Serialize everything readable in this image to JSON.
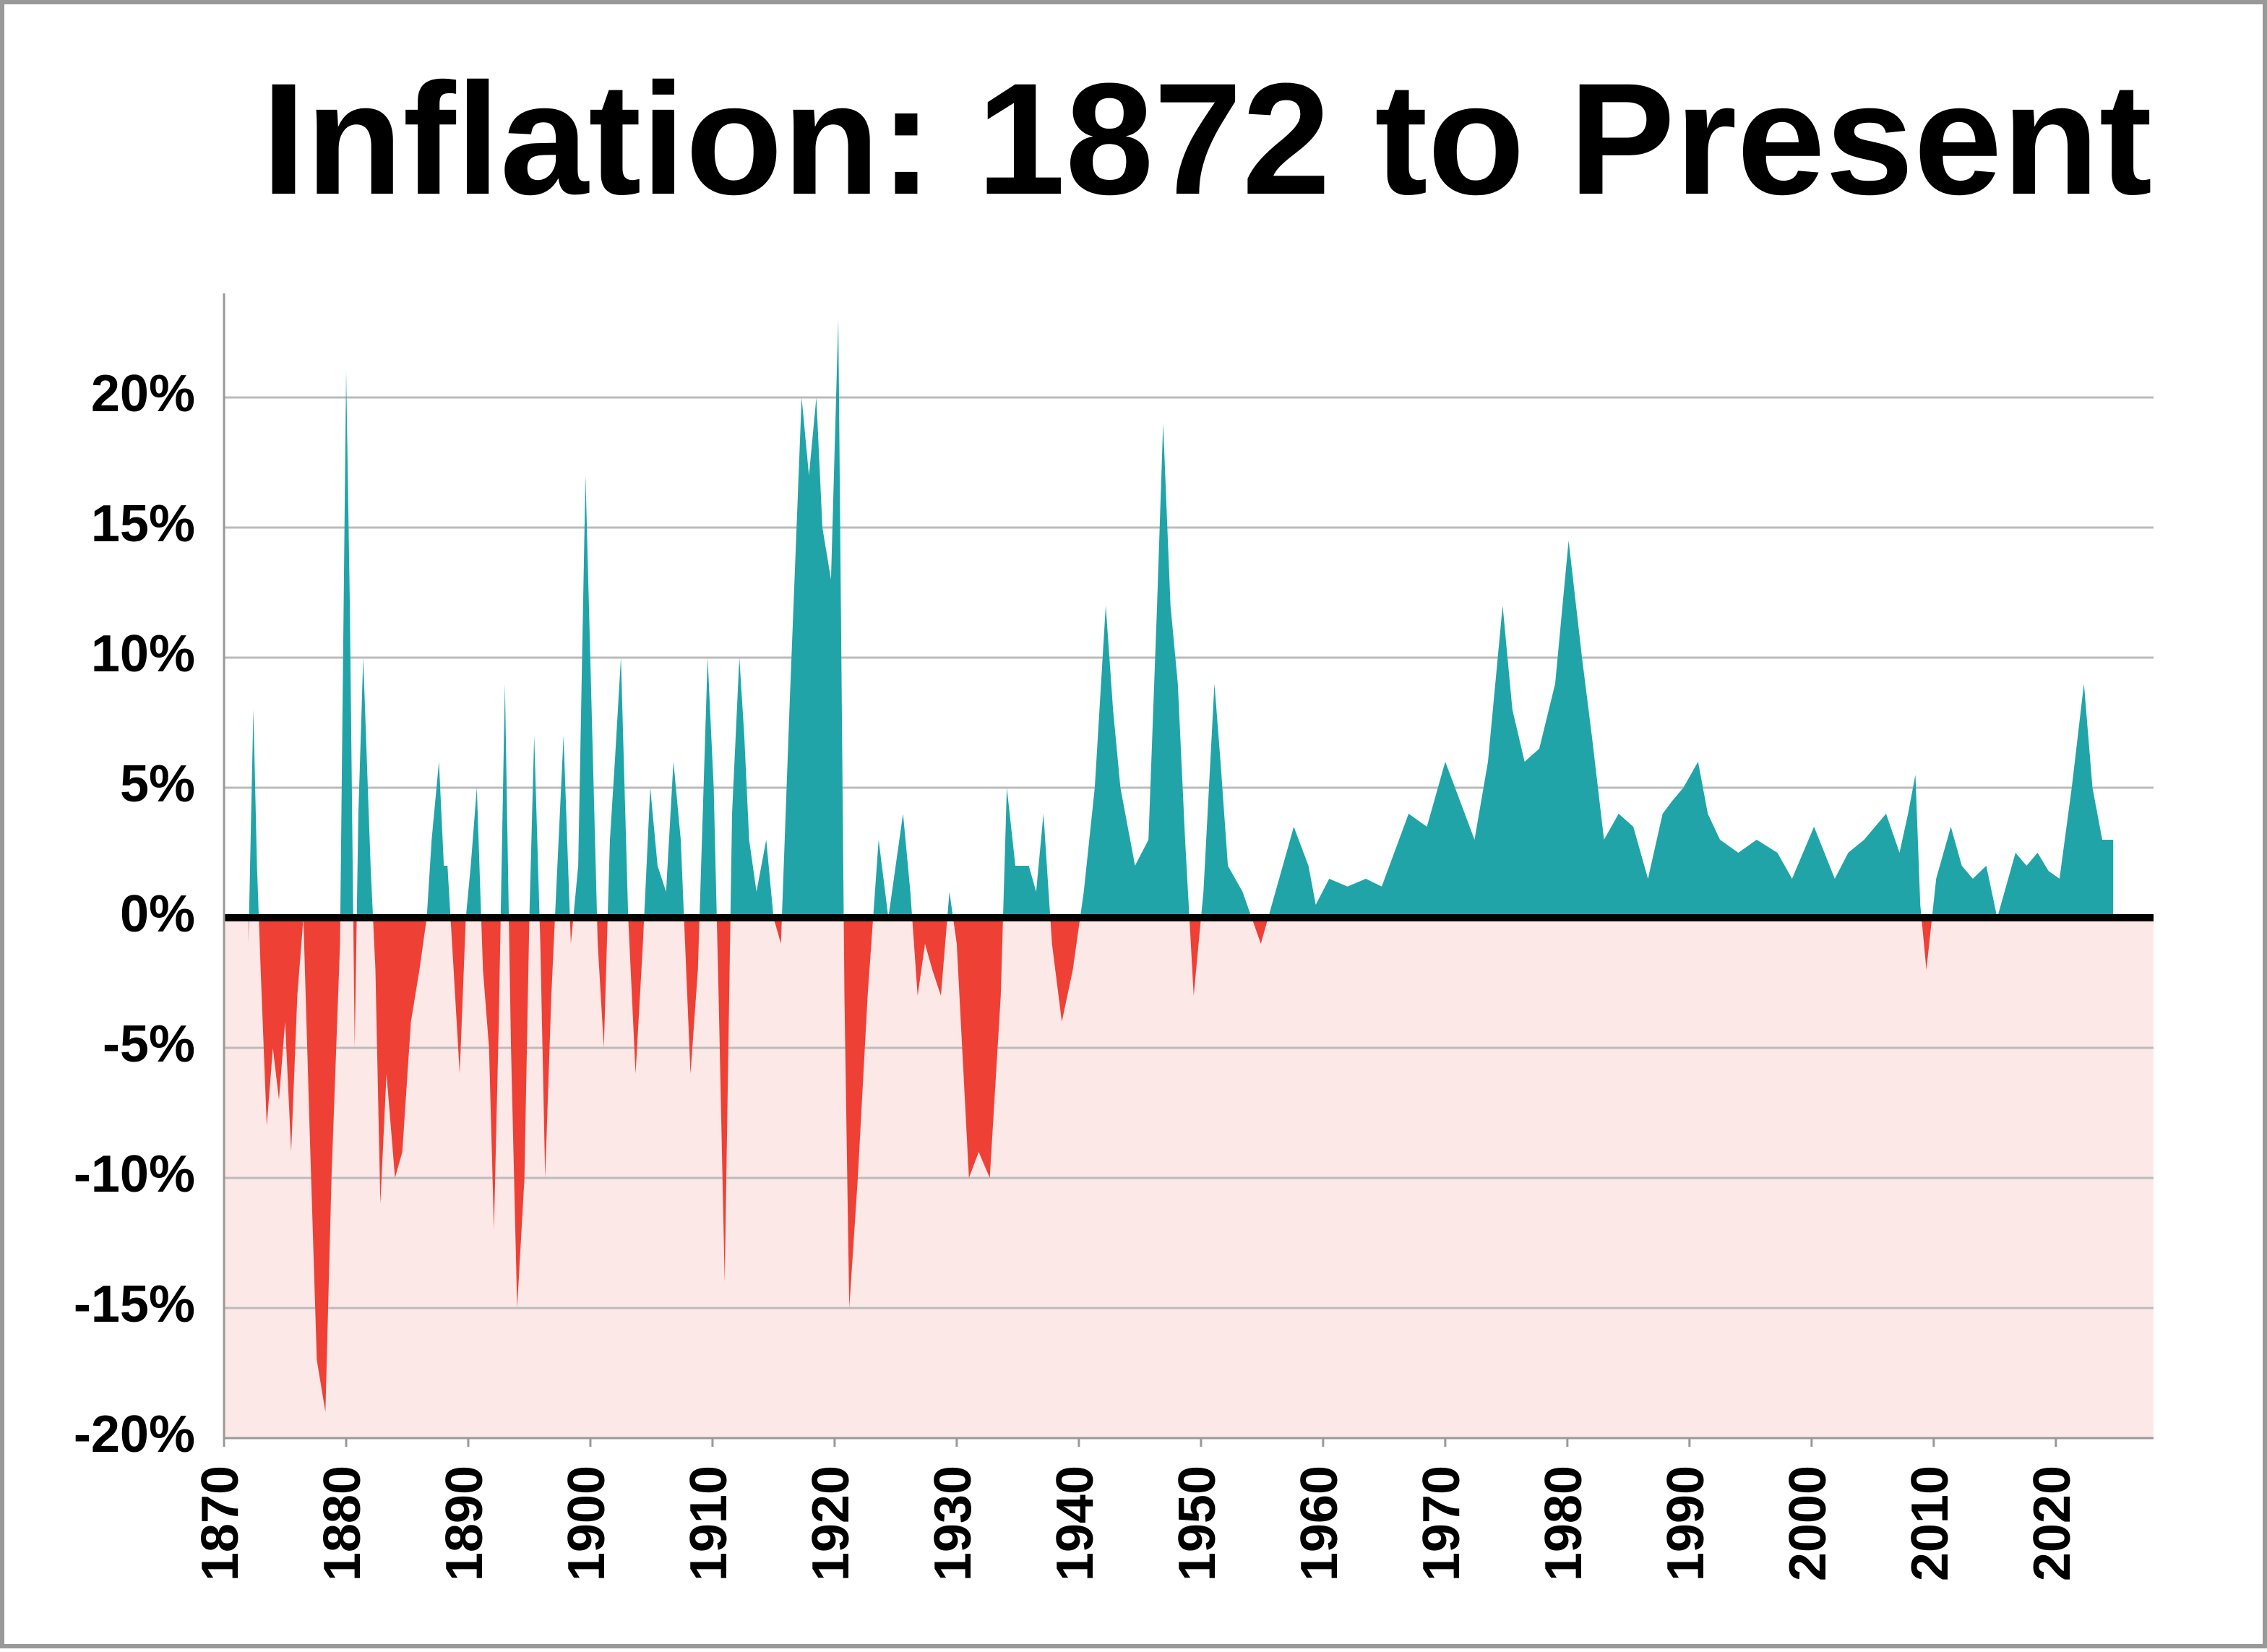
{
  "chart_data": {
    "type": "area",
    "title": "Inflation: 1872 to Present",
    "x": [
      1872.0,
      1872.4,
      1872.7,
      1873.0,
      1873.5,
      1874.0,
      1874.5,
      1875.0,
      1875.5,
      1876.0,
      1876.5,
      1877.0,
      1877.6,
      1878.3,
      1878.8,
      1879.5,
      1880.0,
      1880.3,
      1880.7,
      1881.0,
      1881.4,
      1882.0,
      1882.4,
      1882.8,
      1883.3,
      1884.0,
      1884.6,
      1885.3,
      1886.0,
      1886.6,
      1887.0,
      1887.6,
      1888.0,
      1888.3,
      1888.8,
      1889.3,
      1889.8,
      1890.2,
      1890.7,
      1891.2,
      1891.7,
      1892.1,
      1892.5,
      1893.0,
      1893.5,
      1894.0,
      1894.6,
      1895.0,
      1895.4,
      1895.9,
      1896.3,
      1896.8,
      1897.2,
      1897.8,
      1898.4,
      1899.0,
      1899.6,
      1900.1,
      1900.6,
      1901.1,
      1901.6,
      1902.0,
      1902.5,
      1903.1,
      1903.7,
      1904.3,
      1904.9,
      1905.5,
      1906.2,
      1906.8,
      1907.4,
      1908.2,
      1908.8,
      1909.6,
      1910.1,
      1910.5,
      1911.0,
      1911.6,
      1912.2,
      1912.6,
      1913.0,
      1913.6,
      1914.4,
      1915.0,
      1915.6,
      1916.3,
      1917.3,
      1917.9,
      1918.5,
      1919.0,
      1919.7,
      1920.3,
      1920.8,
      1921.2,
      1921.9,
      1922.7,
      1923.6,
      1924.4,
      1925.0,
      1925.6,
      1926.2,
      1926.8,
      1927.4,
      1928.0,
      1928.7,
      1929.4,
      1930.0,
      1931.0,
      1931.8,
      1932.7,
      1933.6,
      1934.1,
      1934.8,
      1935.9,
      1936.5,
      1937.1,
      1937.8,
      1938.6,
      1939.5,
      1940.4,
      1941.3,
      1942.2,
      1942.8,
      1943.4,
      1944.6,
      1945.7,
      1946.4,
      1946.9,
      1947.5,
      1948.1,
      1948.7,
      1949.4,
      1950.2,
      1951.1,
      1951.6,
      1952.2,
      1953.4,
      1954.9,
      1955.8,
      1957.6,
      1958.8,
      1959.4,
      1960.5,
      1962.0,
      1963.5,
      1964.8,
      1967.0,
      1968.5,
      1970.0,
      1971.2,
      1972.4,
      1973.5,
      1974.7,
      1975.5,
      1976.5,
      1977.7,
      1979.0,
      1980.1,
      1981.2,
      1982.0,
      1983.0,
      1984.2,
      1985.4,
      1986.6,
      1987.8,
      1988.6,
      1989.5,
      1990.7,
      1991.5,
      1992.5,
      1994.0,
      1995.5,
      1997.2,
      1998.4,
      2000.2,
      2001.9,
      2003.0,
      2004.3,
      2005.2,
      2006.1,
      2007.2,
      2007.9,
      2008.5,
      2008.9,
      2009.4,
      2010.2,
      2011.4,
      2012.3,
      2013.2,
      2014.3,
      2015.2,
      2016.7,
      2017.6,
      2018.5,
      2019.4,
      2020.3,
      2021.3,
      2022.3,
      2023.0,
      2023.8,
      2024.7
    ],
    "values": [
      -1,
      8,
      2,
      -2,
      -8,
      -5,
      -7,
      -4,
      -9,
      -3,
      0,
      -8,
      -17,
      -19,
      -10,
      -1,
      21,
      12,
      -5,
      4,
      10,
      2,
      -2,
      -11,
      -6,
      -10,
      -9,
      -4,
      -2,
      0,
      3,
      6,
      2,
      2,
      -2,
      -6,
      0,
      2,
      5,
      -2,
      -5,
      -12,
      -4,
      9,
      -5,
      -15,
      -10,
      0,
      7,
      -1,
      -10,
      -3,
      1,
      7,
      -1,
      2,
      17,
      8,
      -1,
      -5,
      3,
      6,
      10,
      0,
      -6,
      -1,
      5,
      2,
      1,
      6,
      3,
      -6,
      -2,
      10,
      5,
      -3,
      -14,
      4,
      10,
      7,
      3,
      1,
      3,
      0,
      -1,
      8,
      20,
      17,
      20,
      15,
      13,
      23,
      -3,
      -15,
      -10,
      -3,
      3,
      0,
      2,
      4,
      1,
      -3,
      -1,
      -2,
      -3,
      1,
      -1,
      -10,
      -9,
      -10,
      -3,
      5,
      2,
      2,
      1,
      4,
      -1,
      -4,
      -2,
      1,
      5,
      12,
      8,
      5,
      2,
      3,
      12,
      19,
      12,
      9,
      3,
      -3,
      1,
      9,
      6,
      2,
      1,
      -1,
      0.5,
      3.5,
      2,
      0.5,
      1.5,
      1.2,
      1.5,
      1.2,
      4,
      3.5,
      6,
      4.5,
      3,
      6,
      12,
      8,
      6,
      6.5,
      9,
      14.5,
      10,
      7,
      3,
      4,
      3.5,
      1.5,
      4,
      4.5,
      5,
      6,
      4,
      3,
      2.5,
      3,
      2.5,
      1.5,
      3.5,
      1.5,
      2.5,
      3,
      3.5,
      4,
      2.5,
      4,
      5.5,
      0.5,
      -2,
      1.5,
      3.5,
      2,
      1.5,
      2,
      0,
      2.5,
      2,
      2.5,
      1.8,
      1.5,
      5,
      9,
      5,
      3,
      3
    ],
    "positive_color": "#20a4a8",
    "negative_color": "#ee4035",
    "negative_band_color": "#fde8e8",
    "xlim": [
      1870,
      2028
    ],
    "ylim": [
      -20,
      24
    ],
    "xticks": [
      1870,
      1880,
      1890,
      1900,
      1910,
      1920,
      1930,
      1940,
      1950,
      1960,
      1970,
      1980,
      1990,
      2000,
      2010,
      2020
    ],
    "yticks": [
      {
        "value": -20,
        "label": "-20%"
      },
      {
        "value": -15,
        "label": "-15%"
      },
      {
        "value": -10,
        "label": "-10%"
      },
      {
        "value": -5,
        "label": "-5%"
      },
      {
        "value": 0,
        "label": "0%"
      },
      {
        "value": 5,
        "label": "5%"
      },
      {
        "value": 10,
        "label": "10%"
      },
      {
        "value": 15,
        "label": "15%"
      },
      {
        "value": 20,
        "label": "20%"
      }
    ],
    "grid": true
  }
}
